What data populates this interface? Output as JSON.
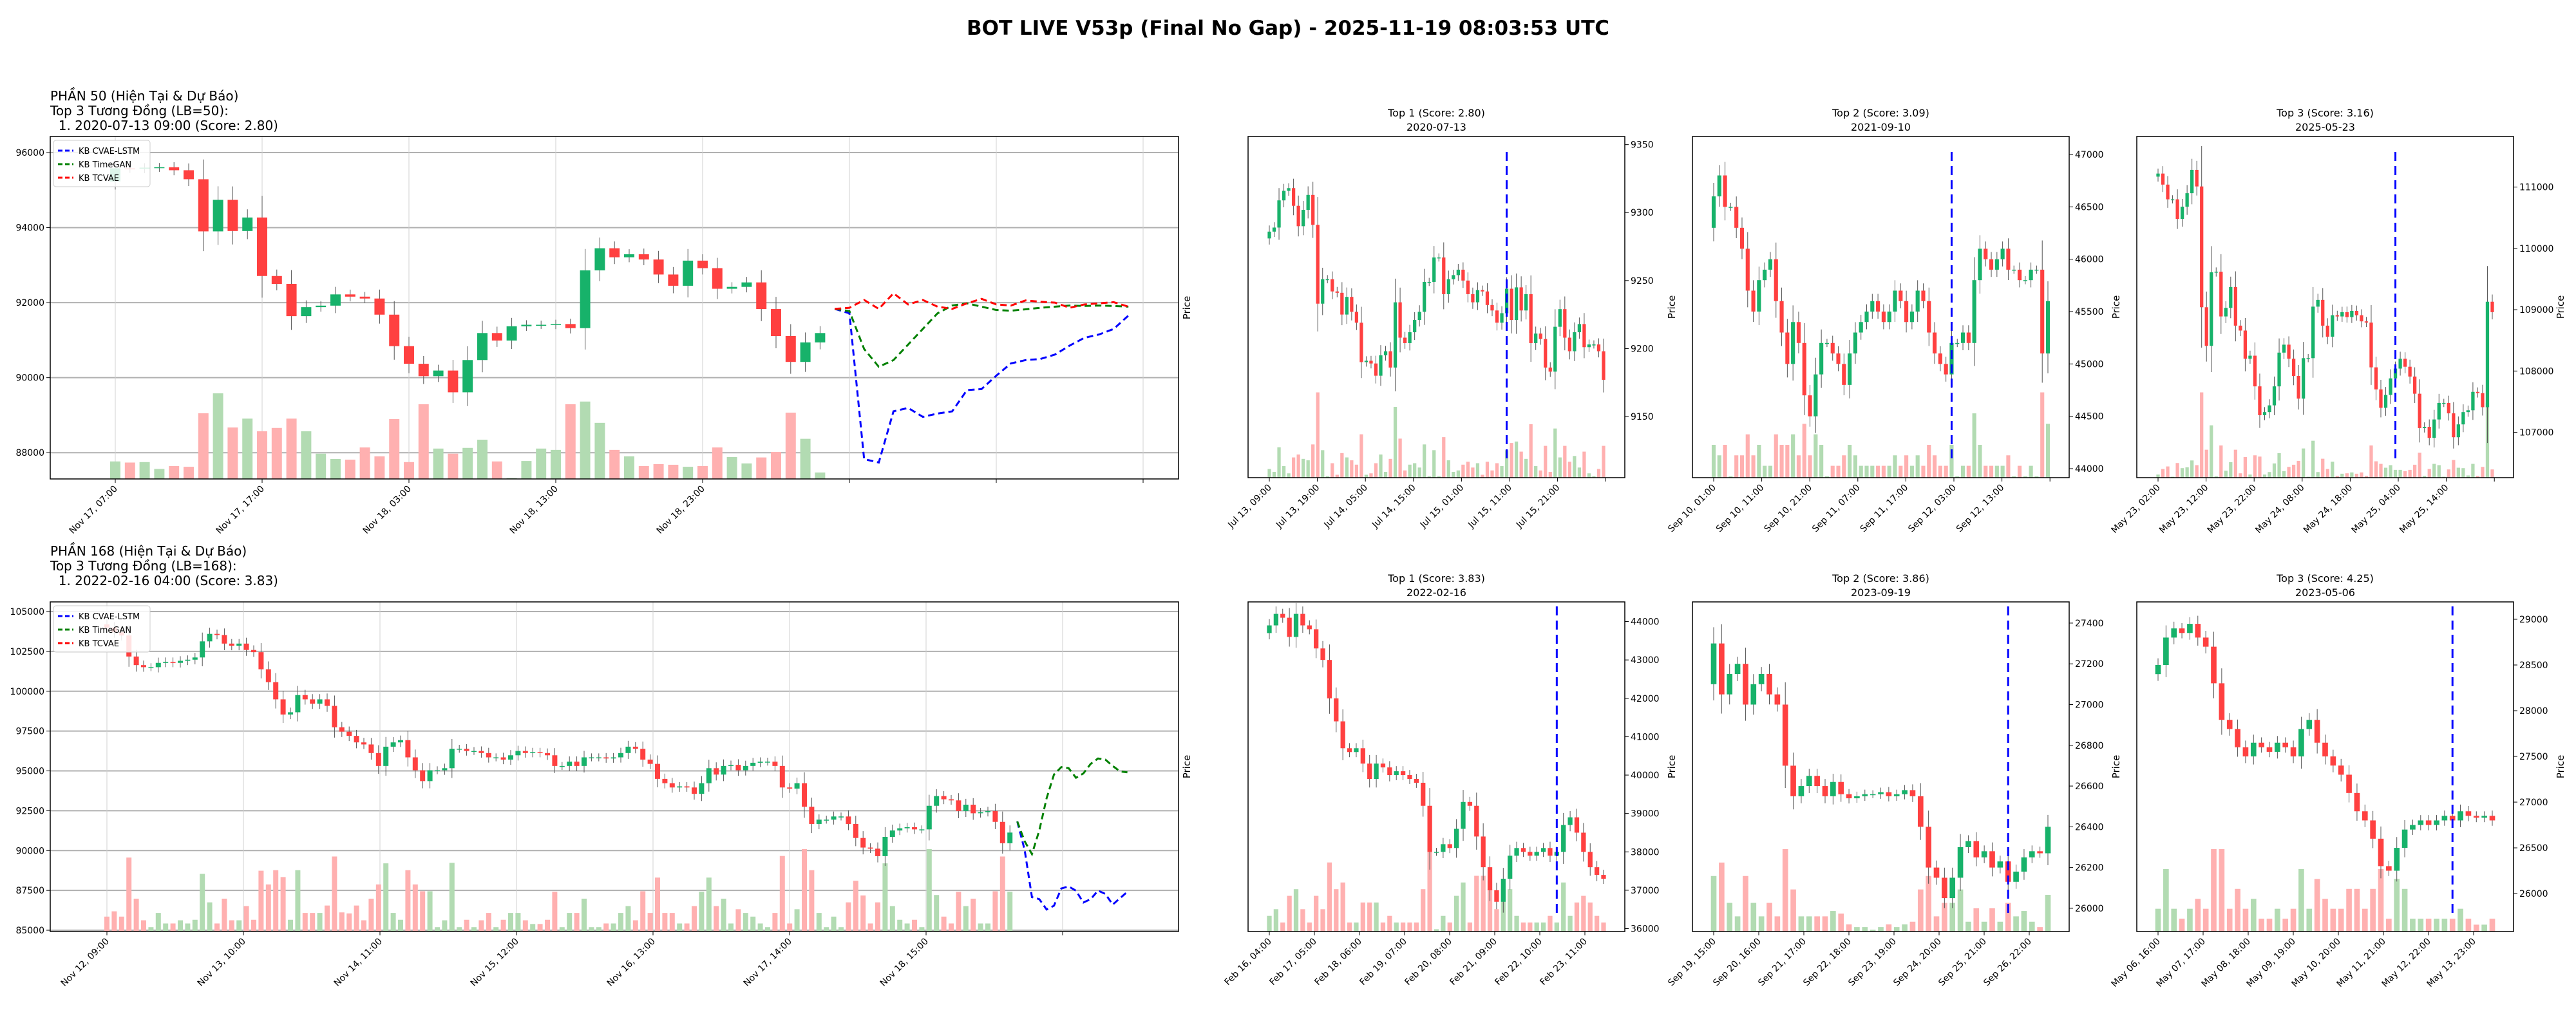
{
  "title": "BOT LIVE V53p (Final No Gap) - 2025-11-19 08:03:53 UTC",
  "colors": {
    "up": "#17b26a",
    "down": "#ff4040",
    "vol_up": "#b2dbb2",
    "vol_down": "#ffb0b0",
    "marker": "#0000ff",
    "grid": "#b0b0b0"
  },
  "legend": [
    {
      "name": "KB CVAE-LSTM",
      "color": "#0000ff"
    },
    {
      "name": "KB TimeGAN",
      "color": "#008000"
    },
    {
      "name": "KB TCVAE",
      "color": "#ff0000"
    }
  ],
  "chart_data": [
    {
      "type": "candlestick",
      "header": [
        "PHẦN 50 (Hiện Tại & Dự Báo)",
        "Top 3 Tương Đồng (LB=50):",
        "  1. 2020-07-13 09:00 (Score: 2.80)"
      ],
      "ylabel": "Price",
      "ylim": [
        87300,
        96430
      ],
      "y_ticks": [
        88000,
        90000,
        92000,
        94000,
        96000
      ],
      "x_tick_labels": [
        "Nov 17, 07:00",
        "Nov 17, 17:00",
        "Nov 18, 03:00",
        "Nov 18, 13:00",
        "Nov 18, 23:00"
      ],
      "grid": true,
      "legend_position": "top-left",
      "first_open": 95230,
      "closes": [
        95580,
        95570,
        95600,
        95610,
        95530,
        95290,
        93900,
        94740,
        93910,
        94270,
        92710,
        92500,
        91640,
        91880,
        91920,
        92220,
        92160,
        92110,
        91680,
        90840,
        90370,
        90040,
        90190,
        89610,
        90470,
        91190,
        90990,
        91370,
        91410,
        91410,
        91430,
        91320,
        92860,
        93450,
        93210,
        93290,
        93150,
        92750,
        92450,
        93120,
        92920,
        92370,
        92420,
        92540,
        91830,
        91110,
        90420,
        90940,
        91190
      ],
      "volumes": [
        79,
        74,
        76,
        45,
        58,
        55,
        296,
        386,
        232,
        272,
        215,
        230,
        272,
        215,
        114,
        90,
        87,
        142,
        102,
        270,
        76,
        337,
        137,
        114,
        140,
        177,
        79,
        4,
        81,
        137,
        131,
        337,
        349,
        253,
        131,
        102,
        58,
        67,
        64,
        55,
        58,
        142,
        99,
        70,
        97,
        122,
        299,
        181,
        29
      ],
      "forecasts": [
        {
          "name": "KB CVAE-LSTM",
          "values": [
            91834,
            91715,
            87828,
            87739,
            89103,
            89193,
            88955,
            89044,
            89103,
            89667,
            89697,
            90053,
            90380,
            90469,
            90498,
            90617,
            90855,
            91062,
            91151,
            91300,
            91656
          ]
        },
        {
          "name": "KB TimeGAN",
          "values": [
            91834,
            91774,
            90765,
            90290,
            90469,
            90884,
            91300,
            91715,
            91923,
            91982,
            91893,
            91804,
            91786,
            91822,
            91863,
            91893,
            91923,
            91911,
            91923,
            91911,
            91893
          ]
        },
        {
          "name": "KB TCVAE",
          "values": [
            91834,
            91863,
            92071,
            91834,
            92249,
            91952,
            92071,
            91893,
            91834,
            91982,
            92101,
            91952,
            91923,
            92059,
            92024,
            92000,
            91863,
            91952,
            91982,
            92012,
            91893
          ]
        }
      ]
    },
    {
      "type": "candlestick",
      "title": "Top 1 (Score: 2.80)",
      "subtitle": "2020-07-13",
      "ylabel": "Price",
      "ylim": [
        9105,
        9356
      ],
      "y_ticks": [
        9150,
        9200,
        9250,
        9300,
        9350
      ],
      "x_tick_labels": [
        "Jul 13, 09:00",
        "Jul 13, 19:00",
        "Jul 14, 05:00",
        "Jul 14, 15:00",
        "Jul 15, 01:00",
        "Jul 15, 11:00",
        "Jul 15, 21:00"
      ],
      "marker_index": 49,
      "first_open": 9281,
      "closes": [
        9286,
        9289,
        9309,
        9316,
        9318,
        9305,
        9290,
        9302,
        9313,
        9291,
        9233,
        9251,
        9251,
        9242,
        9241,
        9225,
        9238,
        9227,
        9219,
        9190,
        9191,
        9189,
        9180,
        9195,
        9198,
        9186,
        9234,
        9208,
        9204,
        9212,
        9221,
        9227,
        9249,
        9249,
        9267,
        9267,
        9240,
        9251,
        9254,
        9258,
        9250,
        9240,
        9234,
        9243,
        9242,
        9232,
        9228,
        9219,
        9226,
        9244,
        9221,
        9245,
        9228,
        9240,
        9204,
        9211,
        9207,
        9186,
        9183,
        9216,
        9229,
        9208,
        9198,
        9212,
        9218,
        9201,
        9203,
        9203,
        9198,
        9177
      ]
    },
    {
      "type": "candlestick",
      "title": "Top 2 (Score: 3.09)",
      "subtitle": "2021-09-10",
      "ylabel": "Price",
      "ylim": [
        43914,
        47172
      ],
      "y_ticks": [
        44000,
        44500,
        45000,
        45500,
        46000,
        46500,
        47000
      ],
      "x_tick_labels": [
        "Sep 10, 01:00",
        "Sep 10, 11:00",
        "Sep 10, 21:00",
        "Sep 11, 07:00",
        "Sep 11, 17:00",
        "Sep 12, 03:00",
        "Sep 12, 13:00"
      ],
      "marker_index": 42,
      "first_open": 46300,
      "closes": [
        46600,
        46800,
        46500,
        46500,
        46300,
        46100,
        45700,
        45500,
        45800,
        45900,
        46000,
        45600,
        45300,
        45000,
        45400,
        45200,
        44700,
        44500,
        44900,
        45200,
        45200,
        45100,
        45000,
        44800,
        45100,
        45300,
        45400,
        45500,
        45600,
        45500,
        45400,
        45500,
        45700,
        45600,
        45400,
        45500,
        45700,
        45600,
        45300,
        45100,
        45000,
        44900,
        45200,
        45200,
        45300,
        45200,
        45800,
        46100,
        46000,
        45900,
        46000,
        46100,
        45900,
        45900,
        45800,
        45800,
        45900,
        45900,
        45100,
        45600
      ]
    },
    {
      "type": "candlestick",
      "title": "Top 3 (Score: 3.16)",
      "subtitle": "2025-05-23",
      "ylabel": "Price",
      "ylim": [
        106261,
        111825
      ],
      "y_ticks": [
        107000,
        108000,
        109000,
        110000,
        111000
      ],
      "x_tick_labels": [
        "May 23, 02:00",
        "May 23, 12:00",
        "May 23, 22:00",
        "May 24, 08:00",
        "May 24, 18:00",
        "May 25, 04:00",
        "May 25, 14:00"
      ],
      "marker_index": 49,
      "first_open": 111170,
      "closes": [
        111220,
        111040,
        110800,
        110800,
        110480,
        110680,
        110900,
        111280,
        111010,
        109040,
        108410,
        109610,
        109620,
        108890,
        109030,
        109370,
        108740,
        108660,
        108200,
        108250,
        107750,
        107280,
        107330,
        107440,
        107750,
        108300,
        108430,
        108200,
        107920,
        107550,
        108210,
        108210,
        109050,
        109160,
        108740,
        108560,
        108910,
        108890,
        108960,
        108880,
        108980,
        108910,
        108810,
        108790,
        108060,
        107700,
        107400,
        107610,
        107880,
        108040,
        108200,
        108070,
        107910,
        107630,
        107070,
        107090,
        106910,
        107210,
        107480,
        107480,
        107310,
        106920,
        107130,
        107330,
        107360,
        107660,
        107640,
        107410,
        109130,
        108960
      ]
    },
    {
      "type": "candlestick",
      "header": [
        "PHẦN 168 (Hiện Tại & Dự Báo)",
        "Top 3 Tương Đồng (LB=168):",
        "  1. 2022-02-16 04:00 (Score: 3.83)"
      ],
      "ylabel": "Price",
      "ylim": [
        84920,
        105607
      ],
      "y_ticks": [
        85000,
        87500,
        90000,
        92500,
        95000,
        97500,
        100000,
        102500,
        105000
      ],
      "x_tick_labels": [
        "Nov 12, 09:00",
        "Nov 13, 10:00",
        "Nov 14, 11:00",
        "Nov 15, 12:00",
        "Nov 16, 13:00",
        "Nov 17, 14:00",
        "Nov 18, 15:00"
      ],
      "grid": true,
      "legend_position": "top-left",
      "first_open": 104200,
      "closes": [
        104000,
        103700,
        103500,
        102180,
        101640,
        101510,
        101510,
        101780,
        101850,
        101780,
        101910,
        101980,
        102120,
        103130,
        103600,
        103530,
        102990,
        102860,
        102990,
        102590,
        102450,
        101380,
        100570,
        99490,
        98540,
        98680,
        99760,
        99490,
        99220,
        99490,
        99080,
        97740,
        97460,
        97200,
        96790,
        96660,
        96120,
        95310,
        96520,
        96790,
        96930,
        95850,
        95040,
        94360,
        95040,
        95040,
        95170,
        96390,
        96390,
        96250,
        96250,
        96120,
        95850,
        95850,
        95710,
        95980,
        96250,
        96120,
        96180,
        96120,
        95980,
        95310,
        95310,
        95580,
        95310,
        95850,
        95850,
        95850,
        95780,
        95850,
        96120,
        96520,
        96390,
        95710,
        95440,
        94500,
        94230,
        93960,
        94030,
        93960,
        93560,
        94230,
        95170,
        94770,
        95310,
        95380,
        95040,
        95310,
        95510,
        95580,
        95580,
        95310,
        93960,
        93890,
        94230,
        92750,
        91670,
        91940,
        91940,
        92140,
        92140,
        91670,
        90790,
        90190,
        90120,
        89650,
        90860,
        91260,
        91400,
        91470,
        91330,
        91330,
        92810,
        93420,
        93220,
        93150,
        92480,
        92880,
        92340,
        92410,
        92480,
        91800,
        90460,
        91130
      ],
      "forecasts": [
        {
          "name": "KB CVAE-LSTM",
          "values": [
            91830,
            90050,
            87080,
            86950,
            86300,
            86540,
            87620,
            87750,
            87480,
            86740,
            86950,
            87490,
            87280,
            86610,
            87010,
            87420
          ]
        },
        {
          "name": "KB TimeGAN",
          "values": [
            91830,
            90590,
            89780,
            91260,
            93290,
            94770,
            95240,
            95170,
            94570,
            94840,
            95440,
            95780,
            95710,
            95310,
            94970,
            94910
          ]
        },
        {
          "name": "KB TCVAE",
          "values": []
        }
      ]
    },
    {
      "type": "candlestick",
      "title": "Top 1 (Score: 3.83)",
      "subtitle": "2022-02-16",
      "ylabel": "Price",
      "ylim": [
        35925,
        44512
      ],
      "y_ticks": [
        36000,
        37000,
        38000,
        39000,
        40000,
        41000,
        42000,
        43000,
        44000
      ],
      "x_tick_labels": [
        "Feb 16, 04:00",
        "Feb 17, 05:00",
        "Feb 18, 06:00",
        "Feb 19, 07:00",
        "Feb 20, 08:00",
        "Feb 21, 09:00",
        "Feb 22, 10:00",
        "Feb 23, 11:00"
      ],
      "marker_index": 43,
      "first_open": 43700,
      "closes": [
        43900,
        44200,
        44100,
        43600,
        44200,
        43900,
        43800,
        43300,
        43000,
        42000,
        41400,
        40700,
        40600,
        40700,
        40300,
        39900,
        40300,
        40200,
        40000,
        40100,
        40000,
        39900,
        39800,
        39200,
        38000,
        38000,
        38200,
        38100,
        38600,
        39300,
        39200,
        38400,
        37600,
        37000,
        36700,
        37300,
        37900,
        38100,
        38000,
        37900,
        38000,
        38100,
        37900,
        38000,
        38700,
        38900,
        38500,
        38000,
        37600,
        37400,
        37300
      ]
    },
    {
      "type": "candlestick",
      "title": "Top 2 (Score: 3.86)",
      "subtitle": "2023-09-19",
      "ylabel": "Price",
      "ylim": [
        25886,
        27504
      ],
      "y_ticks": [
        26000,
        26200,
        26400,
        26600,
        26800,
        27000,
        27200,
        27400
      ],
      "x_tick_labels": [
        "Sep 19, 15:00",
        "Sep 20, 16:00",
        "Sep 21, 17:00",
        "Sep 22, 18:00",
        "Sep 23, 19:00",
        "Sep 24, 20:00",
        "Sep 25, 21:00",
        "Sep 26, 22:00"
      ],
      "marker_index": 37,
      "first_open": 27100,
      "closes": [
        27300,
        27050,
        27150,
        27200,
        27000,
        27100,
        27150,
        27050,
        27000,
        26700,
        26550,
        26600,
        26650,
        26600,
        26550,
        26620,
        26560,
        26540,
        26550,
        26560,
        26560,
        26570,
        26550,
        26560,
        26580,
        26550,
        26400,
        26200,
        26150,
        26050,
        26150,
        26300,
        26330,
        26250,
        26280,
        26200,
        26230,
        26130,
        26180,
        26250,
        26280,
        26270,
        26400
      ]
    },
    {
      "type": "candlestick",
      "title": "Top 3 (Score: 4.25)",
      "subtitle": "2023-05-06",
      "ylabel": "Price",
      "ylim": [
        25585,
        29190
      ],
      "y_ticks": [
        26000,
        26500,
        27000,
        27500,
        28000,
        28500,
        29000
      ],
      "x_tick_labels": [
        "May 06, 16:00",
        "May 07, 17:00",
        "May 08, 18:00",
        "May 09, 19:00",
        "May 10, 20:00",
        "May 11, 21:00",
        "May 12, 22:00",
        "May 13, 23:00"
      ],
      "marker_index": 37,
      "first_open": 28400,
      "closes": [
        28500,
        28800,
        28900,
        28850,
        28950,
        28800,
        28700,
        28300,
        27900,
        27800,
        27600,
        27500,
        27650,
        27600,
        27550,
        27650,
        27600,
        27500,
        27800,
        27900,
        27650,
        27500,
        27400,
        27300,
        27100,
        26900,
        26800,
        26600,
        26300,
        26250,
        26500,
        26700,
        26750,
        26800,
        26750,
        26800,
        26850,
        26800,
        26900,
        26850,
        26830,
        26850,
        26800
      ]
    }
  ]
}
